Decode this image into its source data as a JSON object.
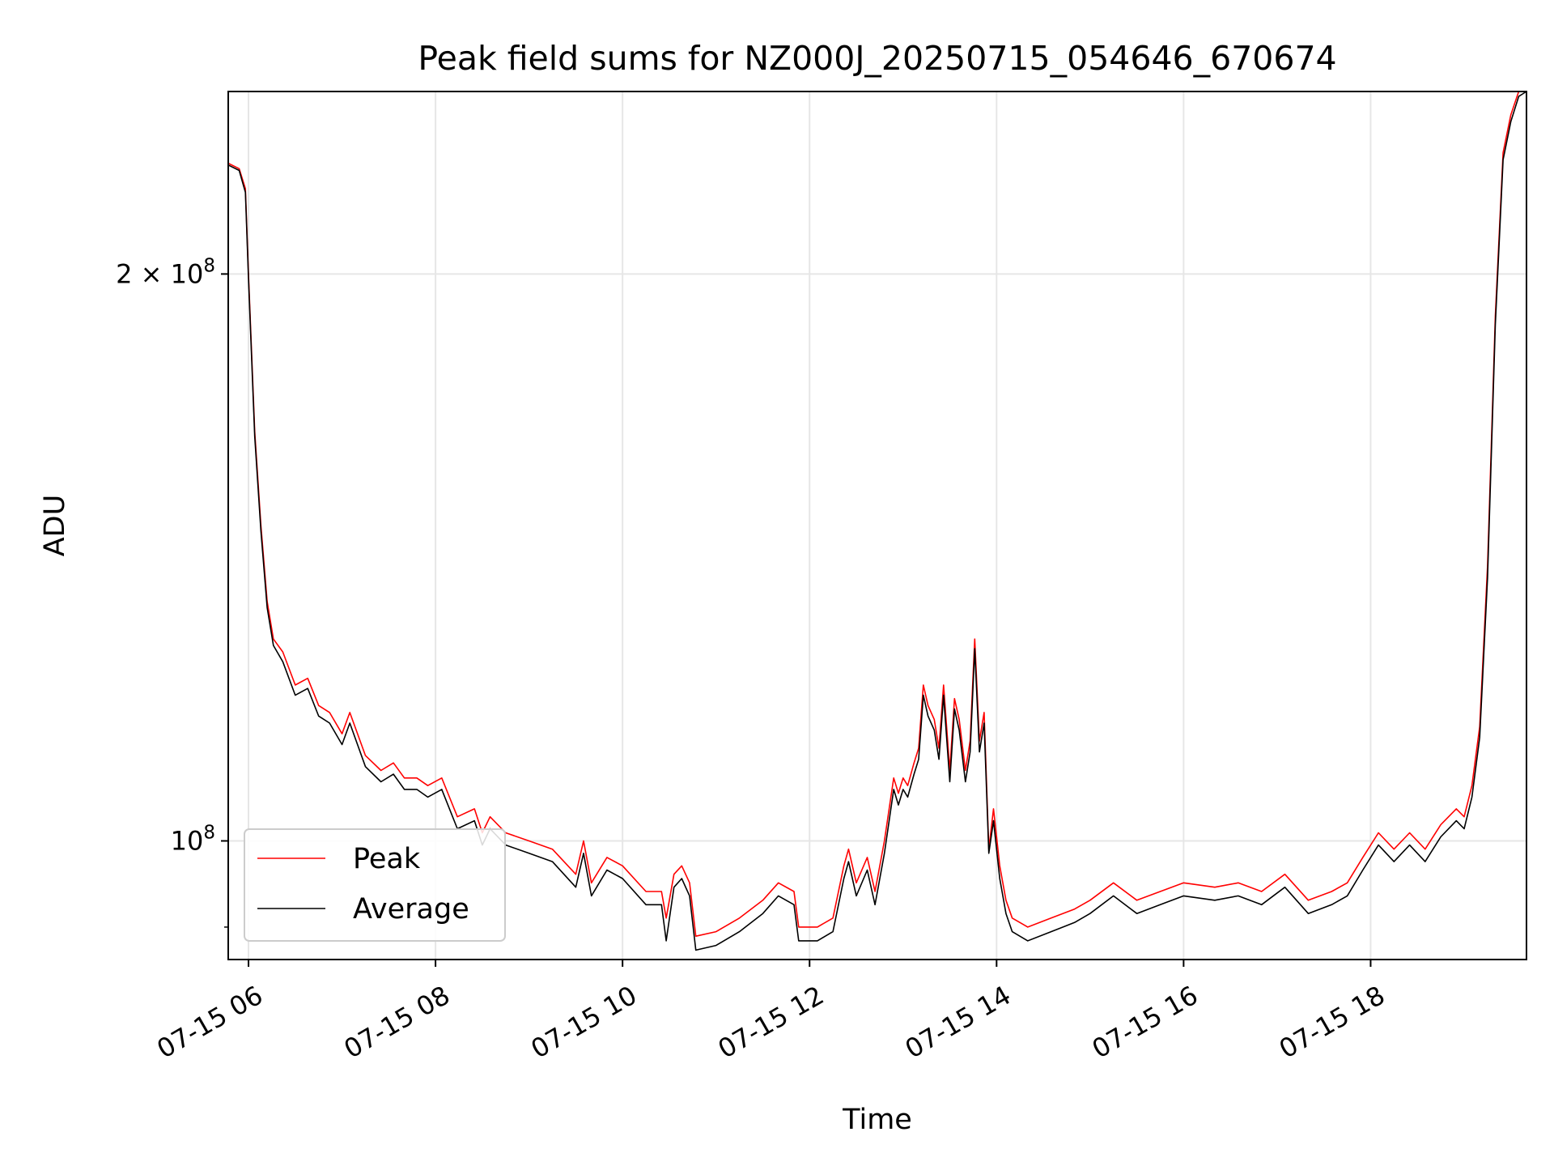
{
  "chart_data": {
    "type": "line",
    "title": "Peak field sums for NZ000J_20250715_054646_670674",
    "xlabel": "Time",
    "ylabel": "ADU",
    "yscale": "log",
    "xlim": [
      "2025-07-15 05:47",
      "2025-07-15 19:40"
    ],
    "ylim": [
      86500000,
      250000000
    ],
    "x_ticks": [
      {
        "value": "2025-07-15 06:00",
        "label": "07-15 06"
      },
      {
        "value": "2025-07-15 08:00",
        "label": "07-15 08"
      },
      {
        "value": "2025-07-15 10:00",
        "label": "07-15 10"
      },
      {
        "value": "2025-07-15 12:00",
        "label": "07-15 12"
      },
      {
        "value": "2025-07-15 14:00",
        "label": "07-15 14"
      },
      {
        "value": "2025-07-15 16:00",
        "label": "07-15 16"
      },
      {
        "value": "2025-07-15 18:00",
        "label": "07-15 18"
      }
    ],
    "y_ticks": [
      {
        "value": 100000000,
        "mantissa": "",
        "base": "10",
        "exp": "8"
      },
      {
        "value": 200000000,
        "mantissa": "2 × ",
        "base": "10",
        "exp": "8"
      }
    ],
    "grid": true,
    "legend_position": "lower-left",
    "x": [
      "2025-07-15 05:47",
      "2025-07-15 05:54",
      "2025-07-15 05:58",
      "2025-07-15 06:00",
      "2025-07-15 06:04",
      "2025-07-15 06:08",
      "2025-07-15 06:12",
      "2025-07-15 06:16",
      "2025-07-15 06:22",
      "2025-07-15 06:30",
      "2025-07-15 06:38",
      "2025-07-15 06:45",
      "2025-07-15 06:52",
      "2025-07-15 07:00",
      "2025-07-15 07:05",
      "2025-07-15 07:15",
      "2025-07-15 07:25",
      "2025-07-15 07:33",
      "2025-07-15 07:40",
      "2025-07-15 07:48",
      "2025-07-15 07:55",
      "2025-07-15 08:04",
      "2025-07-15 08:14",
      "2025-07-15 08:25",
      "2025-07-15 08:30",
      "2025-07-15 08:35",
      "2025-07-15 08:45",
      "2025-07-15 09:00",
      "2025-07-15 09:15",
      "2025-07-15 09:30",
      "2025-07-15 09:35",
      "2025-07-15 09:40",
      "2025-07-15 09:50",
      "2025-07-15 10:00",
      "2025-07-15 10:15",
      "2025-07-15 10:25",
      "2025-07-15 10:28",
      "2025-07-15 10:33",
      "2025-07-15 10:38",
      "2025-07-15 10:43",
      "2025-07-15 10:47",
      "2025-07-15 11:00",
      "2025-07-15 11:15",
      "2025-07-15 11:30",
      "2025-07-15 11:40",
      "2025-07-15 11:50",
      "2025-07-15 11:53",
      "2025-07-15 12:05",
      "2025-07-15 12:15",
      "2025-07-15 12:22",
      "2025-07-15 12:25",
      "2025-07-15 12:30",
      "2025-07-15 12:37",
      "2025-07-15 12:42",
      "2025-07-15 12:48",
      "2025-07-15 12:54",
      "2025-07-15 12:57",
      "2025-07-15 13:00",
      "2025-07-15 13:03",
      "2025-07-15 13:07",
      "2025-07-15 13:10",
      "2025-07-15 13:13",
      "2025-07-15 13:16",
      "2025-07-15 13:20",
      "2025-07-15 13:23",
      "2025-07-15 13:26",
      "2025-07-15 13:30",
      "2025-07-15 13:33",
      "2025-07-15 13:36",
      "2025-07-15 13:40",
      "2025-07-15 13:43",
      "2025-07-15 13:46",
      "2025-07-15 13:49",
      "2025-07-15 13:52",
      "2025-07-15 13:55",
      "2025-07-15 13:58",
      "2025-07-15 14:02",
      "2025-07-15 14:06",
      "2025-07-15 14:10",
      "2025-07-15 14:20",
      "2025-07-15 14:35",
      "2025-07-15 14:50",
      "2025-07-15 15:00",
      "2025-07-15 15:15",
      "2025-07-15 15:30",
      "2025-07-15 15:45",
      "2025-07-15 16:00",
      "2025-07-15 16:20",
      "2025-07-15 16:35",
      "2025-07-15 16:50",
      "2025-07-15 17:05",
      "2025-07-15 17:20",
      "2025-07-15 17:35",
      "2025-07-15 17:45",
      "2025-07-15 17:55",
      "2025-07-15 18:05",
      "2025-07-15 18:15",
      "2025-07-15 18:25",
      "2025-07-15 18:35",
      "2025-07-15 18:45",
      "2025-07-15 18:55",
      "2025-07-15 19:00",
      "2025-07-15 19:05",
      "2025-07-15 19:10",
      "2025-07-15 19:15",
      "2025-07-15 19:20",
      "2025-07-15 19:25",
      "2025-07-15 19:30",
      "2025-07-15 19:35",
      "2025-07-15 19:40"
    ],
    "series": [
      {
        "name": "Peak",
        "color": "#ff0000",
        "values": [
          229000000,
          227500000,
          222000000,
          200000000,
          165000000,
          147000000,
          134000000,
          128000000,
          126000000,
          121000000,
          122000000,
          118000000,
          117000000,
          114000000,
          117000000,
          111000000,
          109000000,
          110000000,
          108000000,
          108000000,
          107000000,
          108000000,
          103000000,
          104000000,
          101000000,
          103000000,
          101000000,
          100000000,
          99000000,
          96000000,
          100000000,
          95000000,
          98000000,
          97000000,
          94000000,
          94000000,
          91000000,
          96000000,
          97000000,
          95000000,
          89000000,
          89500000,
          91000000,
          93000000,
          95000000,
          94000000,
          90000000,
          90000000,
          91000000,
          97000000,
          99000000,
          95000000,
          98000000,
          94000000,
          100000000,
          108000000,
          106000000,
          108000000,
          107000000,
          110000000,
          112000000,
          121000000,
          118000000,
          116000000,
          112000000,
          121000000,
          109000000,
          119000000,
          116000000,
          109000000,
          113000000,
          128000000,
          113000000,
          117000000,
          99000000,
          104000000,
          97000000,
          93000000,
          91000000,
          90000000,
          91000000,
          92000000,
          93000000,
          95000000,
          93000000,
          94000000,
          95000000,
          94500000,
          95000000,
          94000000,
          96000000,
          93000000,
          94000000,
          95000000,
          98000000,
          101000000,
          99000000,
          101000000,
          99000000,
          102000000,
          104000000,
          103000000,
          107000000,
          115000000,
          140000000,
          190000000,
          232000000,
          243000000,
          250000000,
          251000000
        ]
      },
      {
        "name": "Average",
        "color": "#000000",
        "values": [
          228500000,
          227000000,
          221000000,
          199000000,
          164000000,
          146000000,
          133000000,
          127000000,
          124500000,
          119500000,
          120500000,
          116500000,
          115500000,
          112500000,
          115500000,
          109500000,
          107500000,
          108500000,
          106500000,
          106500000,
          105500000,
          106500000,
          101500000,
          102500000,
          99500000,
          101500000,
          99500000,
          98500000,
          97500000,
          94500000,
          98500000,
          93500000,
          96500000,
          95500000,
          92500000,
          92500000,
          88500000,
          94500000,
          95500000,
          93500000,
          87500000,
          88000000,
          89500000,
          91500000,
          93500000,
          92500000,
          88500000,
          88500000,
          89500000,
          95500000,
          97500000,
          93500000,
          96500000,
          92500000,
          98500000,
          106500000,
          104500000,
          106500000,
          105500000,
          108500000,
          110500000,
          119500000,
          116500000,
          114500000,
          110500000,
          119500000,
          107500000,
          117500000,
          114500000,
          107500000,
          111500000,
          126500000,
          111500000,
          115500000,
          98500000,
          102500000,
          95500000,
          91500000,
          89500000,
          88500000,
          89500000,
          90500000,
          91500000,
          93500000,
          91500000,
          92500000,
          93500000,
          93000000,
          93500000,
          92500000,
          94500000,
          91500000,
          92500000,
          93500000,
          96500000,
          99500000,
          97500000,
          99500000,
          97500000,
          100500000,
          102500000,
          101500000,
          105500000,
          113500000,
          138000000,
          188000000,
          230000000,
          241000000,
          248500000,
          250000000
        ]
      }
    ]
  }
}
